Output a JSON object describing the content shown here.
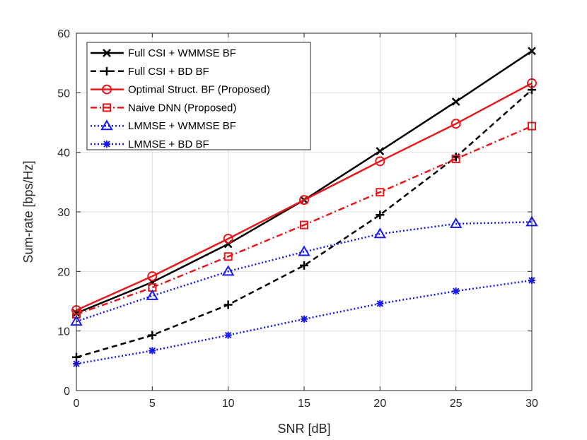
{
  "chart_data": {
    "type": "line",
    "title": "",
    "xlabel": "SNR [dB]",
    "ylabel": "Sum-rate [bps/Hz]",
    "xlim": [
      0,
      30
    ],
    "ylim": [
      0,
      60
    ],
    "xticks": [
      0,
      5,
      10,
      15,
      20,
      25,
      30
    ],
    "yticks": [
      0,
      10,
      20,
      30,
      40,
      50,
      60
    ],
    "grid": true,
    "legend_position": "top-left",
    "x": [
      0,
      5,
      10,
      15,
      20,
      25,
      30
    ],
    "series": [
      {
        "name": "Full CSI + WMMSE BF",
        "values": [
          13.0,
          18.2,
          24.6,
          32.0,
          40.2,
          48.5,
          57.0
        ],
        "color": "#000000",
        "dash": "solid",
        "marker": "x"
      },
      {
        "name": "Full CSI + BD BF",
        "values": [
          5.6,
          9.3,
          14.4,
          21.0,
          29.5,
          39.2,
          50.5
        ],
        "color": "#000000",
        "dash": "dashed",
        "marker": "plus"
      },
      {
        "name": "Optimal Struct. BF (Proposed)",
        "values": [
          13.5,
          19.2,
          25.5,
          32.0,
          38.5,
          44.8,
          51.6
        ],
        "color": "#e8191c",
        "dash": "solid",
        "marker": "circle"
      },
      {
        "name": "Naive DNN (Proposed)",
        "values": [
          12.8,
          17.3,
          22.5,
          27.8,
          33.3,
          38.9,
          44.4
        ],
        "color": "#e8191c",
        "dash": "dashdot",
        "marker": "square"
      },
      {
        "name": "LMMSE + WMMSE BF",
        "values": [
          11.6,
          15.9,
          20.0,
          23.3,
          26.3,
          28.0,
          28.3
        ],
        "color": "#1818f0",
        "dash": "dotted",
        "marker": "triangle"
      },
      {
        "name": "LMMSE + BD BF",
        "values": [
          4.5,
          6.7,
          9.3,
          12.0,
          14.6,
          16.7,
          18.5
        ],
        "color": "#1818f0",
        "dash": "dotted",
        "marker": "asterisk"
      }
    ]
  }
}
